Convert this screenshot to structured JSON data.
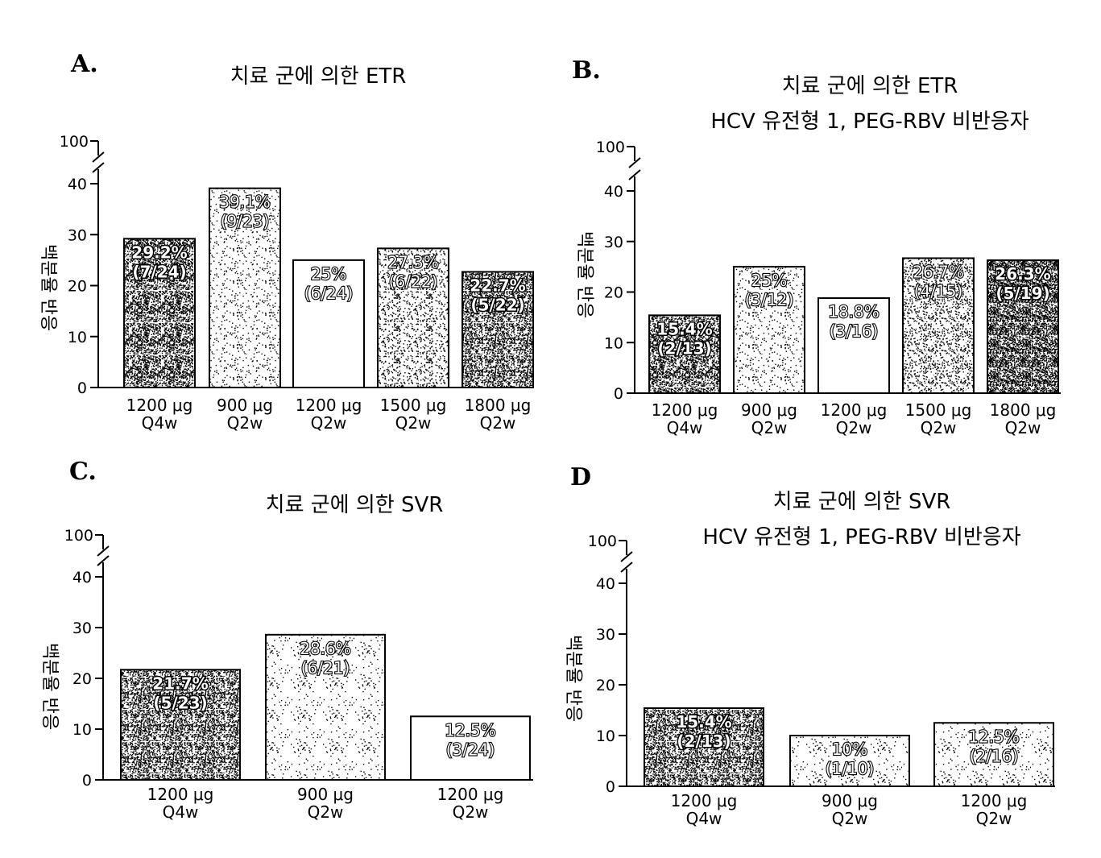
{
  "chart_data": [
    {
      "panel": "A.",
      "type": "bar",
      "title": [
        "치료 군에 의한 ETR"
      ],
      "ylabel": "백분율 반응",
      "yticks": [
        0,
        10,
        20,
        30,
        40
      ],
      "ybreak_label": "100",
      "ylim": [
        0,
        40
      ],
      "categories": [
        [
          "1200 μg",
          "Q4w"
        ],
        [
          "900 μg",
          "Q2w"
        ],
        [
          "1200 μg",
          "Q2w"
        ],
        [
          "1500 μg",
          "Q2w"
        ],
        [
          "1800 μg",
          "Q2w"
        ]
      ],
      "values": [
        29.2,
        39.1,
        25,
        27.3,
        22.7
      ],
      "value_labels": [
        "29.2%",
        "39.1%",
        "25%",
        "27.3%",
        "22.7%"
      ],
      "count_labels": [
        "(7/24)",
        "(9/23)",
        "(6/24)",
        "(6/22)",
        "(5/22)"
      ],
      "fill_density": [
        0.62,
        0.08,
        0.0,
        0.18,
        0.55
      ]
    },
    {
      "panel": "B.",
      "type": "bar",
      "title": [
        "치료 군에 의한 ETR",
        "HCV 유전형 1, PEG-RBV 비반응자"
      ],
      "ylabel": "백분율 반응",
      "yticks": [
        0,
        10,
        20,
        30,
        40
      ],
      "ybreak_label": "100",
      "ylim": [
        0,
        40
      ],
      "categories": [
        [
          "1200 μg",
          "Q4w"
        ],
        [
          "900 μg",
          "Q2w"
        ],
        [
          "1200 μg",
          "Q2w"
        ],
        [
          "1500 μg",
          "Q2w"
        ],
        [
          "1800 μg",
          "Q2w"
        ]
      ],
      "values": [
        15.4,
        25,
        18.8,
        26.7,
        26.3
      ],
      "value_labels": [
        "15.4%",
        "25%",
        "18.8%",
        "26.7%",
        "26.3%"
      ],
      "count_labels": [
        "(2/13)",
        "(3/12)",
        "(3/16)",
        "(4/15)",
        "(5/19)"
      ],
      "fill_density": [
        0.62,
        0.08,
        0.0,
        0.22,
        0.78
      ]
    },
    {
      "panel": "C.",
      "type": "bar",
      "title": [
        "치료 군에 의한 SVR"
      ],
      "ylabel": "백분율 반응",
      "yticks": [
        0,
        10,
        20,
        30,
        40
      ],
      "ybreak_label": "100",
      "ylim": [
        0,
        40
      ],
      "categories": [
        [
          "1200 μg",
          "Q4w"
        ],
        [
          "900 μg",
          "Q2w"
        ],
        [
          "1200 μg",
          "Q2w"
        ]
      ],
      "values": [
        21.7,
        28.6,
        12.5
      ],
      "value_labels": [
        "21.7%",
        "28.6%",
        "12.5%"
      ],
      "count_labels": [
        "(5/23)",
        "(6/21)",
        "(3/24)"
      ],
      "fill_density": [
        0.55,
        0.05,
        0.0
      ]
    },
    {
      "panel": "D",
      "type": "bar",
      "title": [
        "치료 군에 의한 SVR",
        "HCV 유전형 1, PEG-RBV 비반응자"
      ],
      "ylabel": "백분율 반응",
      "yticks": [
        0,
        10,
        20,
        30,
        40
      ],
      "ybreak_label": "100",
      "ylim": [
        0,
        40
      ],
      "categories": [
        [
          "1200 μg",
          "Q4w"
        ],
        [
          "900 μg",
          "Q2w"
        ],
        [
          "1200 μg",
          "Q2w"
        ]
      ],
      "values": [
        15.4,
        10,
        12.5
      ],
      "value_labels": [
        "15.4%",
        "10%",
        "12.5%"
      ],
      "count_labels": [
        "(2/13)",
        "(1/10)",
        "(2/16)"
      ],
      "fill_density": [
        0.55,
        0.05,
        0.05
      ]
    }
  ]
}
